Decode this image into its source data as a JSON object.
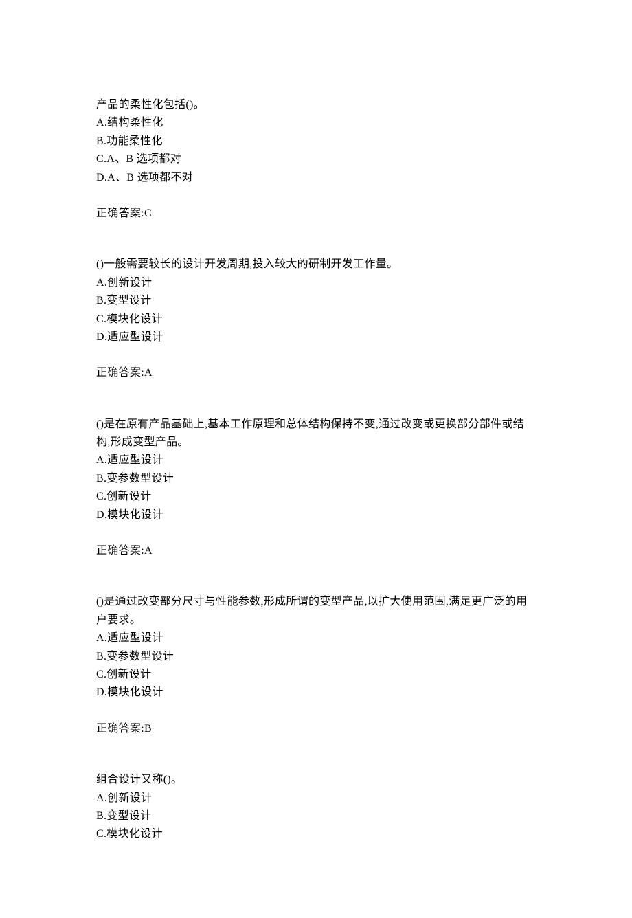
{
  "document": {
    "background_color": "#ffffff",
    "text_color": "#000000",
    "font_family": "SimSun, 宋体, serif",
    "font_size_pt": 12,
    "line_height": 1.65
  },
  "questions": [
    {
      "question": "产品的柔性化包括()。",
      "options": {
        "a": "A.结构柔性化",
        "b": "B.功能柔性化",
        "c": "C.A、B 选项都对",
        "d": "D.A、B 选项都不对"
      },
      "answer": "正确答案:C"
    },
    {
      "question": "()一般需要较长的设计开发周期,投入较大的研制开发工作量。",
      "options": {
        "a": "A.创新设计",
        "b": "B.变型设计",
        "c": "C.模块化设计",
        "d": "D.适应型设计"
      },
      "answer": "正确答案:A"
    },
    {
      "question": "()是在原有产品基础上,基本工作原理和总体结构保持不变,通过改变或更换部分部件或结构,形成变型产品。",
      "options": {
        "a": "A.适应型设计",
        "b": "B.变参数型设计",
        "c": "C.创新设计",
        "d": "D.模块化设计"
      },
      "answer": "正确答案:A"
    },
    {
      "question": "()是通过改变部分尺寸与性能参数,形成所谓的变型产品,以扩大使用范围,满足更广泛的用户要求。",
      "options": {
        "a": "A.适应型设计",
        "b": "B.变参数型设计",
        "c": "C.创新设计",
        "d": "D.模块化设计"
      },
      "answer": "正确答案:B"
    },
    {
      "question": "组合设计又称()。",
      "options": {
        "a": "A.创新设计",
        "b": "B.变型设计",
        "c": "C.模块化设计"
      },
      "answer": ""
    }
  ]
}
